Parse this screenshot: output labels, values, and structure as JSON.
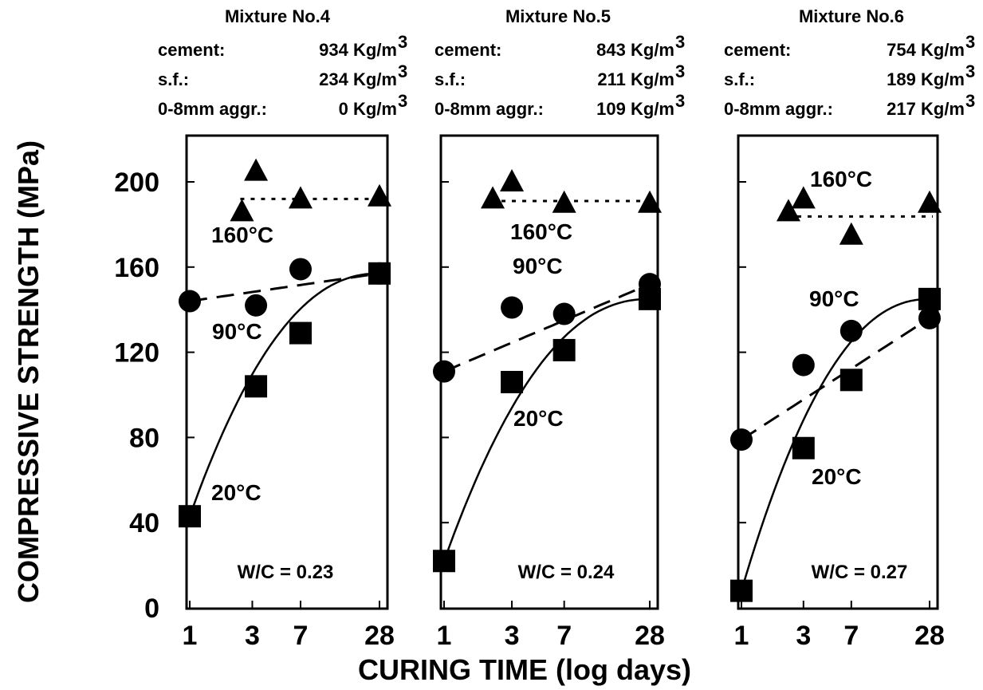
{
  "figure": {
    "ylabel": "COMPRESSIVE STRENGTH (MPa)",
    "xlabel": "CURING TIME (log days)",
    "y_ticks": [
      "0",
      "40",
      "80",
      "120",
      "160",
      "200"
    ],
    "x_ticks": [
      "1",
      "3",
      "7",
      "28"
    ]
  },
  "chart_data": [
    {
      "type": "scatter",
      "mixture": {
        "title": "Mixture No.4",
        "rows": [
          {
            "label": "cement:",
            "value": "934 Kg/m",
            "sup": "3"
          },
          {
            "label": "s.f.:",
            "value": "234 Kg/m",
            "sup": "3"
          },
          {
            "label": "0-8mm aggr.:",
            "value": "0 Kg/m",
            "sup": "3"
          }
        ]
      },
      "wc": "W/C = 0.23",
      "x_scale": "log",
      "xlim": [
        1,
        28
      ],
      "ylim": [
        0,
        200
      ],
      "series": [
        {
          "name": "160°C",
          "marker": "triangle",
          "line": "dotted",
          "x": [
            2.5,
            3.2,
            7,
            28
          ],
          "y": [
            186,
            205,
            192,
            193
          ]
        },
        {
          "name": "90°C",
          "marker": "circle",
          "line": "dashed",
          "x": [
            1,
            3.2,
            7,
            28
          ],
          "y": [
            144,
            142,
            159,
            157
          ]
        },
        {
          "name": "20°C",
          "marker": "square",
          "line": "solid",
          "x": [
            1,
            3.2,
            7,
            28
          ],
          "y": [
            43,
            104,
            129,
            157
          ]
        }
      ]
    },
    {
      "type": "scatter",
      "mixture": {
        "title": "Mixture No.5",
        "rows": [
          {
            "label": "cement:",
            "value": "843 Kg/m",
            "sup": "3"
          },
          {
            "label": "s.f.:",
            "value": "211 Kg/m",
            "sup": "3"
          },
          {
            "label": "0-8mm aggr.:",
            "value": "109 Kg/m",
            "sup": "3"
          }
        ]
      },
      "wc": "W/C = 0.24",
      "x_scale": "log",
      "xlim": [
        1,
        28
      ],
      "ylim": [
        0,
        200
      ],
      "series": [
        {
          "name": "160°C",
          "marker": "triangle",
          "line": "dotted",
          "x": [
            2.2,
            3,
            7,
            28
          ],
          "y": [
            192,
            200,
            190,
            190
          ]
        },
        {
          "name": "90°C",
          "marker": "circle",
          "line": "dashed",
          "x": [
            1,
            3,
            7,
            28
          ],
          "y": [
            111,
            141,
            138,
            152
          ]
        },
        {
          "name": "20°C",
          "marker": "square",
          "line": "solid",
          "x": [
            1,
            3,
            7,
            28
          ],
          "y": [
            22,
            106,
            121,
            145
          ]
        }
      ]
    },
    {
      "type": "scatter",
      "mixture": {
        "title": "Mixture No.6",
        "rows": [
          {
            "label": "cement:",
            "value": "754 Kg/m",
            "sup": "3"
          },
          {
            "label": "s.f.:",
            "value": "189 Kg/m",
            "sup": "3"
          },
          {
            "label": "0-8mm aggr.:",
            "value": "217 Kg/m",
            "sup": "3"
          }
        ]
      },
      "wc": "W/C = 0.27",
      "x_scale": "log",
      "xlim": [
        1,
        28
      ],
      "ylim": [
        0,
        200
      ],
      "series": [
        {
          "name": "160°C",
          "marker": "triangle",
          "line": "dotted",
          "x": [
            2.3,
            3,
            7,
            28
          ],
          "y": [
            186,
            192,
            175,
            190
          ]
        },
        {
          "name": "90°C",
          "marker": "circle",
          "line": "dashed",
          "x": [
            1,
            3,
            7,
            28
          ],
          "y": [
            79,
            114,
            130,
            136
          ]
        },
        {
          "name": "20°C",
          "marker": "square",
          "line": "solid",
          "x": [
            1,
            3,
            7,
            28
          ],
          "y": [
            8,
            75,
            107,
            145
          ]
        }
      ]
    }
  ]
}
